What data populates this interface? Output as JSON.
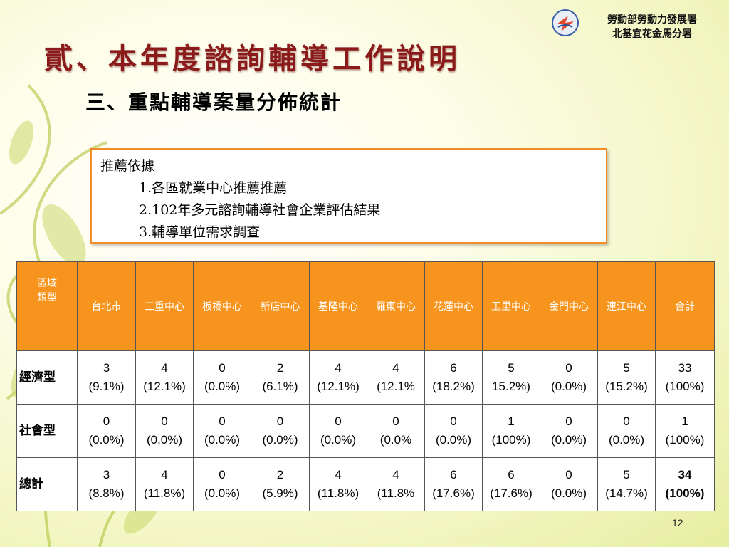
{
  "header": {
    "agency_line1": "勞動部勞動力發展署",
    "agency_line2": "北基宜花金馬分署"
  },
  "title": "貳、本年度諮詢輔導工作說明",
  "subtitle": "三、重點輔導案量分佈統計",
  "basis": {
    "heading": "推薦依據",
    "items": [
      "1.各區就業中心推薦推薦",
      "2.102年多元諮詢輔導社會企業評估結果",
      "3.輔導單位需求調查"
    ]
  },
  "table": {
    "corner_line1": "區域",
    "corner_line2": "類型",
    "columns": [
      "台北市",
      "三重中心",
      "板橋中心",
      "新店中心",
      "基隆中心",
      "羅東中心",
      "花蓮中心",
      "玉里中心",
      "金門中心",
      "連江中心",
      "合計"
    ],
    "rows": [
      {
        "label": "經濟型",
        "cells": [
          {
            "count": "3",
            "pct": "(9.1%)"
          },
          {
            "count": "4",
            "pct": "(12.1%)"
          },
          {
            "count": "0",
            "pct": "(0.0%)"
          },
          {
            "count": "2",
            "pct": "(6.1%)"
          },
          {
            "count": "4",
            "pct": "(12.1%)"
          },
          {
            "count": "4",
            "pct": "(12.1%"
          },
          {
            "count": "6",
            "pct": "(18.2%)"
          },
          {
            "count": "5",
            "pct": "15.2%)"
          },
          {
            "count": "0",
            "pct": "(0.0%)"
          },
          {
            "count": "5",
            "pct": "(15.2%)"
          },
          {
            "count": "33",
            "pct": "(100%)"
          }
        ]
      },
      {
        "label": "社會型",
        "cells": [
          {
            "count": "0",
            "pct": "(0.0%)"
          },
          {
            "count": "0",
            "pct": "(0.0%)"
          },
          {
            "count": "0",
            "pct": "(0.0%)"
          },
          {
            "count": "0",
            "pct": "(0.0%)"
          },
          {
            "count": "0",
            "pct": "(0.0%)"
          },
          {
            "count": "0",
            "pct": "(0.0%"
          },
          {
            "count": "0",
            "pct": "(0.0%)"
          },
          {
            "count": "1",
            "pct": "(100%)"
          },
          {
            "count": "0",
            "pct": "(0.0%)"
          },
          {
            "count": "0",
            "pct": "(0.0%)"
          },
          {
            "count": "1",
            "pct": "(100%)"
          }
        ]
      },
      {
        "label": "總計",
        "cells": [
          {
            "count": "3",
            "pct": "(8.8%)"
          },
          {
            "count": "4",
            "pct": "(11.8%)"
          },
          {
            "count": "0",
            "pct": "(0.0%)"
          },
          {
            "count": "2",
            "pct": "(5.9%)"
          },
          {
            "count": "4",
            "pct": "(11.8%)"
          },
          {
            "count": "4",
            "pct": "(11.8%"
          },
          {
            "count": "6",
            "pct": "(17.6%)"
          },
          {
            "count": "6",
            "pct": "(17.6%)"
          },
          {
            "count": "0",
            "pct": "(0.0%)"
          },
          {
            "count": "5",
            "pct": "(14.7%)"
          },
          {
            "count": "34",
            "pct": "(100%)",
            "bold": true
          }
        ]
      }
    ]
  },
  "page_number": "12",
  "colors": {
    "title": "#8b1a1a",
    "header_fill": "#f7941d",
    "box_border": "#f28c28"
  }
}
